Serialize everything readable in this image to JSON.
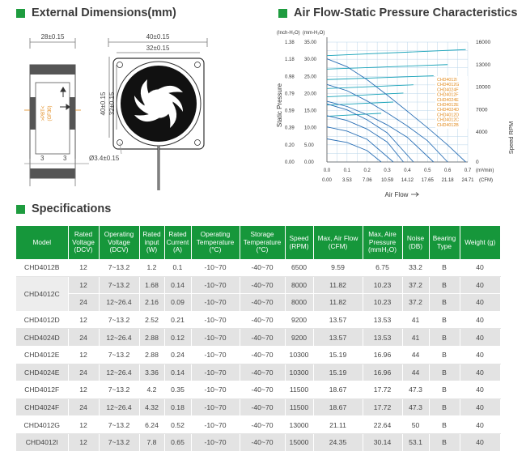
{
  "sections": {
    "dimensions_title": "External Dimensions(mm)",
    "airflow_title": "Air Flow-Static Pressure Characteristics",
    "specs_title": "Specifications"
  },
  "dimensions": {
    "side_width": "28±0.15",
    "front_width": "40±0.15",
    "front_inner": "32±0.15",
    "front_height": "40±0.15",
    "front_inner_height": "32±0.15",
    "hole": "Ø3.4±0.15",
    "bottom_left": "3",
    "bottom_mid": "3",
    "label_text": ">PBT<",
    "label_text2": "(GF30)"
  },
  "colors": {
    "accent": "#1e9c3f",
    "header_green": "#16973b",
    "curve_blue": "#2a6fb5",
    "speed_cyan": "#19a3b8",
    "label_orange": "#e28a1c"
  },
  "chart_data": {
    "type": "line",
    "left_unit_label": "(Inch-H₂O)",
    "left_unit_label2": "(mm-H₂O)",
    "ylabel": "Static Pressure",
    "xlabel": "Air Flow",
    "right_label": "Speed RPM",
    "x_unit_top": "(m³/min)",
    "x_unit_bottom": "(CFM)",
    "y_ticks_inch": [
      "1.38",
      "1.18",
      "0.98",
      "0.79",
      "0.59",
      "0.39",
      "0.20",
      "0.00"
    ],
    "y_ticks_mm": [
      "35.00",
      "30.00",
      "25.00",
      "20.00",
      "15.00",
      "10.00",
      "5.00",
      "0.00"
    ],
    "y_range_mm": [
      0,
      35
    ],
    "x_ticks_m3": [
      "0.0",
      "0.1",
      "0.2",
      "0.3",
      "0.4",
      "0.5",
      "0.6",
      "0.7"
    ],
    "x_ticks_cfm": [
      "0.00",
      "3.53",
      "7.06",
      "10.59",
      "14.12",
      "17.65",
      "21.18",
      "24.71"
    ],
    "x_range_m3": [
      0,
      0.7
    ],
    "rpm_ticks": [
      "16000",
      "13000",
      "10000",
      "7000",
      "4000",
      "0"
    ],
    "rpm_range": [
      0,
      16000
    ],
    "legend": [
      "CHD4012I",
      "CHD4012G",
      "CHD4024F",
      "CHD4012F",
      "CHD4024E",
      "CHD4012E",
      "CHD4024D",
      "CHD4012D",
      "CHD4012C",
      "CHD4012B"
    ],
    "series": [
      {
        "name": "CHD4012I",
        "x": [
          0.0,
          0.1,
          0.2,
          0.3,
          0.4,
          0.5,
          0.6,
          0.69
        ],
        "y": [
          30.14,
          27.8,
          24.0,
          19.5,
          14.8,
          10.0,
          5.0,
          0.0
        ]
      },
      {
        "name": "CHD4012G",
        "x": [
          0.0,
          0.1,
          0.2,
          0.3,
          0.4,
          0.5,
          0.6
        ],
        "y": [
          22.64,
          20.8,
          17.8,
          14.3,
          10.5,
          6.2,
          0.0
        ]
      },
      {
        "name": "CHD4012F",
        "x": [
          0.0,
          0.1,
          0.2,
          0.3,
          0.4,
          0.53
        ],
        "y": [
          17.72,
          16.2,
          13.8,
          10.8,
          7.2,
          0.0
        ]
      },
      {
        "name": "CHD4012E",
        "x": [
          0.0,
          0.1,
          0.2,
          0.3,
          0.43
        ],
        "y": [
          16.96,
          15.2,
          12.3,
          8.5,
          0.0
        ]
      },
      {
        "name": "CHD4012D",
        "x": [
          0.0,
          0.1,
          0.2,
          0.3,
          0.38
        ],
        "y": [
          13.53,
          12.1,
          9.6,
          5.8,
          0.0
        ]
      },
      {
        "name": "CHD4012C",
        "x": [
          0.0,
          0.1,
          0.2,
          0.33
        ],
        "y": [
          10.23,
          9.0,
          6.6,
          0.0
        ]
      },
      {
        "name": "CHD4012B",
        "x": [
          0.0,
          0.1,
          0.2,
          0.27
        ],
        "y": [
          6.75,
          5.7,
          3.3,
          0.0
        ]
      }
    ],
    "speed_series": [
      {
        "name": "CHD4012I",
        "x": [
          0.0,
          0.69
        ],
        "rpm": [
          14200,
          15000
        ]
      },
      {
        "name": "CHD4012G",
        "x": [
          0.0,
          0.6
        ],
        "rpm": [
          12400,
          13000
        ]
      },
      {
        "name": "CHD4012F",
        "x": [
          0.0,
          0.53
        ],
        "rpm": [
          11000,
          11500
        ]
      },
      {
        "name": "CHD4012E",
        "x": [
          0.0,
          0.43
        ],
        "rpm": [
          9800,
          10300
        ]
      },
      {
        "name": "CHD4012D",
        "x": [
          0.0,
          0.38
        ],
        "rpm": [
          8700,
          9200
        ]
      },
      {
        "name": "CHD4012C",
        "x": [
          0.0,
          0.33
        ],
        "rpm": [
          7600,
          8000
        ]
      },
      {
        "name": "CHD4012B",
        "x": [
          0.0,
          0.27
        ],
        "rpm": [
          6100,
          6500
        ]
      }
    ]
  },
  "table": {
    "headers": [
      "Model",
      "Rated Voltage (DCV)",
      "Operating Voltage (DCV)",
      "Rated input (W)",
      "Rated Current (A)",
      "Operating Temperature (°C)",
      "Storage Temperature (°C)",
      "Speed (RPM)",
      "Max, Air Flow (CFM)",
      "Max, Aire Pressure (mmH₂O)",
      "Noise (DB)",
      "Bearing Type",
      "Weight (g)"
    ],
    "rows": [
      {
        "model": "CHD4012B",
        "cells": [
          "12",
          "7~13.2",
          "1.2",
          "0.1",
          "-10~70",
          "-40~70",
          "6500",
          "9.59",
          "6.75",
          "33.2",
          "B",
          "40"
        ]
      },
      {
        "model": "CHD4012C",
        "cells": [
          "12",
          "7~13.2",
          "1.68",
          "0.14",
          "-10~70",
          "-40~70",
          "8000",
          "11.82",
          "10.23",
          "37.2",
          "B",
          "40"
        ]
      },
      {
        "model": "",
        "cells": [
          "24",
          "12~26.4",
          "2.16",
          "0.09",
          "-10~70",
          "-40~70",
          "8000",
          "11.82",
          "10.23",
          "37.2",
          "B",
          "40"
        ]
      },
      {
        "model": "CHD4012D",
        "cells": [
          "12",
          "7~13.2",
          "2.52",
          "0.21",
          "-10~70",
          "-40~70",
          "9200",
          "13.57",
          "13.53",
          "41",
          "B",
          "40"
        ]
      },
      {
        "model": "CHD4024D",
        "cells": [
          "24",
          "12~26.4",
          "2.88",
          "0.12",
          "-10~70",
          "-40~70",
          "9200",
          "13.57",
          "13.53",
          "41",
          "B",
          "40"
        ]
      },
      {
        "model": "CHD4012E",
        "cells": [
          "12",
          "7~13.2",
          "2.88",
          "0.24",
          "-10~70",
          "-40~70",
          "10300",
          "15.19",
          "16.96",
          "44",
          "B",
          "40"
        ]
      },
      {
        "model": "CHD4024E",
        "cells": [
          "24",
          "12~26.4",
          "3.36",
          "0.14",
          "-10~70",
          "-40~70",
          "10300",
          "15.19",
          "16.96",
          "44",
          "B",
          "40"
        ]
      },
      {
        "model": "CHD4012F",
        "cells": [
          "12",
          "7~13.2",
          "4.2",
          "0.35",
          "-10~70",
          "-40~70",
          "11500",
          "18.67",
          "17.72",
          "47.3",
          "B",
          "40"
        ]
      },
      {
        "model": "CHD4024F",
        "cells": [
          "24",
          "12~26.4",
          "4.32",
          "0.18",
          "-10~70",
          "-40~70",
          "11500",
          "18.67",
          "17.72",
          "47.3",
          "B",
          "40"
        ]
      },
      {
        "model": "CHD4012G",
        "cells": [
          "12",
          "7~13.2",
          "6.24",
          "0.52",
          "-10~70",
          "-40~70",
          "13000",
          "21.11",
          "22.64",
          "50",
          "B",
          "40"
        ]
      },
      {
        "model": "CHD4012I",
        "cells": [
          "12",
          "7~13.2",
          "7.8",
          "0.65",
          "-10~70",
          "-40~70",
          "15000",
          "24.35",
          "30.14",
          "53.1",
          "B",
          "40"
        ]
      }
    ]
  }
}
